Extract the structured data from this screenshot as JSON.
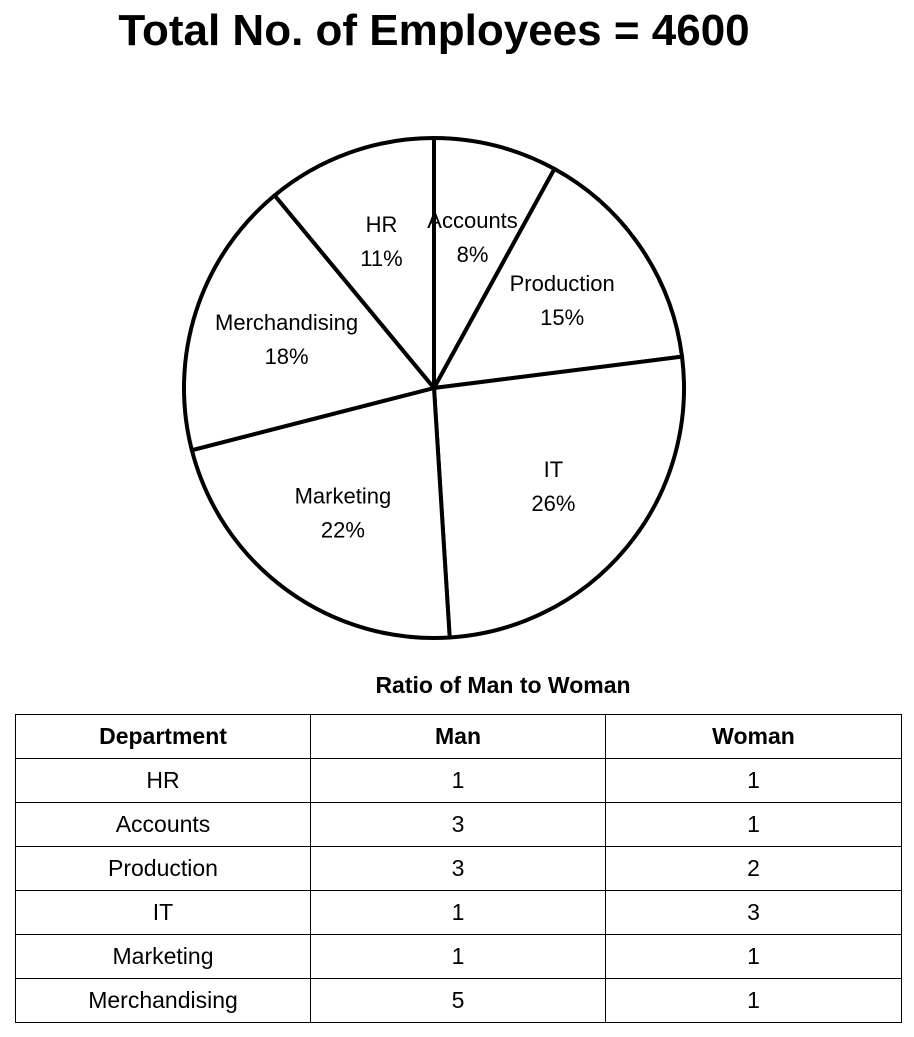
{
  "title": "Total No. of Employees = 4600",
  "chart_data": [
    {
      "type": "pie",
      "title": "Total No. of Employees = 4600",
      "unit": "%",
      "slices": [
        {
          "label": "Accounts",
          "value": 8,
          "display": "8%"
        },
        {
          "label": "Production",
          "value": 15,
          "display": "15%"
        },
        {
          "label": "IT",
          "value": 26,
          "display": "26%"
        },
        {
          "label": "Marketing",
          "value": 22,
          "display": "22%"
        },
        {
          "label": "Merchandising",
          "value": 18,
          "display": "18%"
        },
        {
          "label": "HR",
          "value": 11,
          "display": "11%"
        }
      ],
      "colors": {
        "fill": "#ffffff",
        "stroke": "#000000"
      }
    },
    {
      "type": "table",
      "title": "Ratio of Man to Woman",
      "columns": [
        "Department",
        "Man",
        "Woman"
      ],
      "rows": [
        [
          "HR",
          "1",
          "1"
        ],
        [
          "Accounts",
          "3",
          "1"
        ],
        [
          "Production",
          "3",
          "2"
        ],
        [
          "IT",
          "1",
          "3"
        ],
        [
          "Marketing",
          "1",
          "1"
        ],
        [
          "Merchandising",
          "5",
          "1"
        ]
      ]
    }
  ]
}
